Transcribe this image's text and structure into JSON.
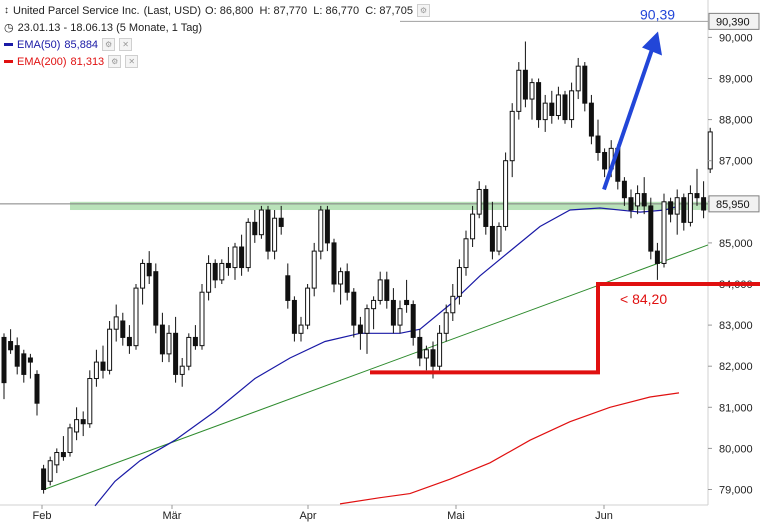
{
  "header": {
    "title": "United Parcel Service Inc.",
    "quote_type": "(Last, USD)",
    "ohlc": "O: 86,800  H: 87,770  L: 86,770  C: 87,705",
    "range": "23.01.13 - 18.06.13 (5 Monate, 1 Tag)"
  },
  "indicators": [
    {
      "label": "EMA(50)",
      "value": "85,884",
      "color": "#1a1aa6"
    },
    {
      "label": "EMA(200)",
      "value": "81,313",
      "color": "#e01010"
    }
  ],
  "chart_data": {
    "type": "candlestick",
    "x_labels": [
      "Feb",
      "Mär",
      "Apr",
      "Mai",
      "Jun"
    ],
    "y_labels": [
      "79,000",
      "80,000",
      "81,000",
      "82,000",
      "83,000",
      "84,000",
      "85,000",
      "86,000",
      "87,000",
      "88,000",
      "89,000",
      "90,000"
    ],
    "ylim": [
      78.8,
      90.5
    ],
    "axis_markers": [
      {
        "value": 90.39,
        "label": "90,390",
        "style": "box-gray"
      },
      {
        "value": 85.95,
        "label": "85,950",
        "style": "box-gray"
      },
      {
        "value": 84.0,
        "label": "84,000",
        "style": "red"
      }
    ],
    "annotations": {
      "target_label": "90,39",
      "target_value": 90.39,
      "support_label": "< 84,20",
      "support_zone": [
        85.8,
        86.0
      ],
      "colors": {
        "target": "#2246d8",
        "support": "#e01010",
        "zone": "#b9e2b9",
        "trend": "#2e8b2e"
      }
    },
    "candles": [
      {
        "o": 82.7,
        "h": 82.8,
        "l": 81.2,
        "c": 81.6
      },
      {
        "o": 82.6,
        "h": 82.9,
        "l": 82.3,
        "c": 82.4
      },
      {
        "o": 82.5,
        "h": 82.7,
        "l": 81.8,
        "c": 82.0
      },
      {
        "o": 82.3,
        "h": 82.4,
        "l": 81.6,
        "c": 81.8
      },
      {
        "o": 82.2,
        "h": 82.3,
        "l": 81.7,
        "c": 82.1
      },
      {
        "o": 81.8,
        "h": 81.9,
        "l": 80.8,
        "c": 81.1
      },
      {
        "o": 79.5,
        "h": 79.6,
        "l": 78.9,
        "c": 79.0
      },
      {
        "o": 79.2,
        "h": 79.8,
        "l": 79.1,
        "c": 79.7
      },
      {
        "o": 79.6,
        "h": 80.0,
        "l": 79.4,
        "c": 79.9
      },
      {
        "o": 79.9,
        "h": 80.3,
        "l": 79.7,
        "c": 79.8
      },
      {
        "o": 79.9,
        "h": 80.6,
        "l": 79.8,
        "c": 80.5
      },
      {
        "o": 80.4,
        "h": 81.0,
        "l": 80.2,
        "c": 80.7
      },
      {
        "o": 80.7,
        "h": 80.9,
        "l": 80.3,
        "c": 80.6
      },
      {
        "o": 80.6,
        "h": 81.9,
        "l": 80.5,
        "c": 81.7
      },
      {
        "o": 81.7,
        "h": 82.4,
        "l": 81.5,
        "c": 82.1
      },
      {
        "o": 82.1,
        "h": 82.5,
        "l": 81.7,
        "c": 81.9
      },
      {
        "o": 81.9,
        "h": 83.1,
        "l": 81.8,
        "c": 82.9
      },
      {
        "o": 82.9,
        "h": 83.5,
        "l": 82.6,
        "c": 83.2
      },
      {
        "o": 83.1,
        "h": 83.3,
        "l": 82.5,
        "c": 82.7
      },
      {
        "o": 82.7,
        "h": 83.0,
        "l": 82.3,
        "c": 82.5
      },
      {
        "o": 82.5,
        "h": 84.0,
        "l": 82.4,
        "c": 83.9
      },
      {
        "o": 83.9,
        "h": 84.6,
        "l": 83.5,
        "c": 84.5
      },
      {
        "o": 84.5,
        "h": 84.8,
        "l": 84.0,
        "c": 84.2
      },
      {
        "o": 84.3,
        "h": 84.5,
        "l": 82.8,
        "c": 83.0
      },
      {
        "o": 83.0,
        "h": 83.3,
        "l": 82.1,
        "c": 82.3
      },
      {
        "o": 82.3,
        "h": 83.0,
        "l": 82.1,
        "c": 82.8
      },
      {
        "o": 82.8,
        "h": 83.2,
        "l": 81.6,
        "c": 81.8
      },
      {
        "o": 81.8,
        "h": 82.2,
        "l": 81.5,
        "c": 82.0
      },
      {
        "o": 82.0,
        "h": 82.8,
        "l": 81.9,
        "c": 82.7
      },
      {
        "o": 82.7,
        "h": 83.0,
        "l": 82.4,
        "c": 82.5
      },
      {
        "o": 82.5,
        "h": 84.0,
        "l": 82.4,
        "c": 83.8
      },
      {
        "o": 83.8,
        "h": 84.7,
        "l": 83.6,
        "c": 84.5
      },
      {
        "o": 84.5,
        "h": 84.6,
        "l": 83.9,
        "c": 84.1
      },
      {
        "o": 84.1,
        "h": 84.6,
        "l": 84.0,
        "c": 84.5
      },
      {
        "o": 84.5,
        "h": 84.9,
        "l": 84.2,
        "c": 84.4
      },
      {
        "o": 84.4,
        "h": 85.0,
        "l": 84.1,
        "c": 84.9
      },
      {
        "o": 84.9,
        "h": 85.2,
        "l": 84.2,
        "c": 84.4
      },
      {
        "o": 84.4,
        "h": 85.6,
        "l": 84.3,
        "c": 85.5
      },
      {
        "o": 85.5,
        "h": 85.8,
        "l": 85.0,
        "c": 85.2
      },
      {
        "o": 85.2,
        "h": 85.9,
        "l": 85.1,
        "c": 85.8
      },
      {
        "o": 85.8,
        "h": 85.9,
        "l": 84.6,
        "c": 84.8
      },
      {
        "o": 84.8,
        "h": 85.8,
        "l": 84.6,
        "c": 85.6
      },
      {
        "o": 85.6,
        "h": 85.9,
        "l": 85.2,
        "c": 85.4
      },
      {
        "o": 84.2,
        "h": 84.5,
        "l": 83.4,
        "c": 83.6
      },
      {
        "o": 83.6,
        "h": 83.7,
        "l": 82.6,
        "c": 82.8
      },
      {
        "o": 82.8,
        "h": 83.2,
        "l": 82.6,
        "c": 83.0
      },
      {
        "o": 83.0,
        "h": 84.0,
        "l": 82.9,
        "c": 83.9
      },
      {
        "o": 83.9,
        "h": 85.0,
        "l": 83.7,
        "c": 84.8
      },
      {
        "o": 84.8,
        "h": 85.9,
        "l": 84.6,
        "c": 85.8
      },
      {
        "o": 85.8,
        "h": 85.9,
        "l": 84.8,
        "c": 85.0
      },
      {
        "o": 85.0,
        "h": 85.1,
        "l": 83.8,
        "c": 84.0
      },
      {
        "o": 84.0,
        "h": 84.4,
        "l": 83.5,
        "c": 84.3
      },
      {
        "o": 84.3,
        "h": 84.5,
        "l": 83.6,
        "c": 83.8
      },
      {
        "o": 83.8,
        "h": 83.9,
        "l": 82.7,
        "c": 83.0
      },
      {
        "o": 83.0,
        "h": 83.2,
        "l": 82.4,
        "c": 82.8
      },
      {
        "o": 82.8,
        "h": 83.5,
        "l": 82.3,
        "c": 83.4
      },
      {
        "o": 83.4,
        "h": 83.7,
        "l": 82.9,
        "c": 83.6
      },
      {
        "o": 83.6,
        "h": 84.3,
        "l": 83.5,
        "c": 84.1
      },
      {
        "o": 84.1,
        "h": 84.3,
        "l": 83.4,
        "c": 83.6
      },
      {
        "o": 83.6,
        "h": 83.9,
        "l": 82.8,
        "c": 83.0
      },
      {
        "o": 83.0,
        "h": 83.6,
        "l": 82.8,
        "c": 83.4
      },
      {
        "o": 83.6,
        "h": 84.1,
        "l": 83.3,
        "c": 83.5
      },
      {
        "o": 83.5,
        "h": 83.6,
        "l": 82.5,
        "c": 82.7
      },
      {
        "o": 82.7,
        "h": 82.9,
        "l": 82.0,
        "c": 82.2
      },
      {
        "o": 82.2,
        "h": 82.5,
        "l": 81.9,
        "c": 82.4
      },
      {
        "o": 82.4,
        "h": 82.6,
        "l": 81.7,
        "c": 82.0
      },
      {
        "o": 82.0,
        "h": 83.0,
        "l": 81.9,
        "c": 82.8
      },
      {
        "o": 82.8,
        "h": 83.5,
        "l": 82.6,
        "c": 83.3
      },
      {
        "o": 83.3,
        "h": 84.0,
        "l": 83.1,
        "c": 83.7
      },
      {
        "o": 83.7,
        "h": 84.6,
        "l": 83.5,
        "c": 84.4
      },
      {
        "o": 84.4,
        "h": 85.3,
        "l": 84.2,
        "c": 85.1
      },
      {
        "o": 85.1,
        "h": 85.9,
        "l": 84.9,
        "c": 85.7
      },
      {
        "o": 85.7,
        "h": 86.5,
        "l": 85.6,
        "c": 86.3
      },
      {
        "o": 86.3,
        "h": 86.4,
        "l": 85.2,
        "c": 85.4
      },
      {
        "o": 85.4,
        "h": 86.0,
        "l": 84.6,
        "c": 84.8
      },
      {
        "o": 84.8,
        "h": 85.5,
        "l": 84.7,
        "c": 85.4
      },
      {
        "o": 85.4,
        "h": 87.2,
        "l": 85.3,
        "c": 87.0
      },
      {
        "o": 87.0,
        "h": 88.4,
        "l": 86.6,
        "c": 88.2
      },
      {
        "o": 88.2,
        "h": 89.4,
        "l": 88.0,
        "c": 89.2
      },
      {
        "o": 89.2,
        "h": 89.9,
        "l": 88.3,
        "c": 88.5
      },
      {
        "o": 88.5,
        "h": 89.0,
        "l": 88.0,
        "c": 88.9
      },
      {
        "o": 88.9,
        "h": 89.0,
        "l": 87.8,
        "c": 88.0
      },
      {
        "o": 88.0,
        "h": 88.6,
        "l": 87.7,
        "c": 88.4
      },
      {
        "o": 88.4,
        "h": 88.7,
        "l": 87.9,
        "c": 88.1
      },
      {
        "o": 88.1,
        "h": 88.8,
        "l": 88.0,
        "c": 88.6
      },
      {
        "o": 88.6,
        "h": 88.7,
        "l": 87.9,
        "c": 88.0
      },
      {
        "o": 88.0,
        "h": 88.9,
        "l": 87.8,
        "c": 88.7
      },
      {
        "o": 88.7,
        "h": 89.5,
        "l": 88.5,
        "c": 89.3
      },
      {
        "o": 89.3,
        "h": 89.4,
        "l": 88.2,
        "c": 88.4
      },
      {
        "o": 88.4,
        "h": 88.6,
        "l": 87.4,
        "c": 87.6
      },
      {
        "o": 87.6,
        "h": 88.0,
        "l": 87.0,
        "c": 87.2
      },
      {
        "o": 87.2,
        "h": 87.3,
        "l": 86.6,
        "c": 86.8
      },
      {
        "o": 86.8,
        "h": 87.5,
        "l": 86.6,
        "c": 87.3
      },
      {
        "o": 87.3,
        "h": 87.4,
        "l": 86.3,
        "c": 86.5
      },
      {
        "o": 86.5,
        "h": 86.6,
        "l": 85.9,
        "c": 86.1
      },
      {
        "o": 86.1,
        "h": 86.3,
        "l": 85.6,
        "c": 85.8
      },
      {
        "o": 85.9,
        "h": 86.4,
        "l": 85.7,
        "c": 86.2
      },
      {
        "o": 86.2,
        "h": 86.6,
        "l": 85.7,
        "c": 85.9
      },
      {
        "o": 85.9,
        "h": 86.1,
        "l": 84.6,
        "c": 84.8
      },
      {
        "o": 84.8,
        "h": 85.0,
        "l": 84.1,
        "c": 84.5
      },
      {
        "o": 84.5,
        "h": 86.2,
        "l": 84.4,
        "c": 86.0
      },
      {
        "o": 86.0,
        "h": 86.1,
        "l": 85.5,
        "c": 85.7
      },
      {
        "o": 85.7,
        "h": 86.3,
        "l": 85.2,
        "c": 86.1
      },
      {
        "o": 86.1,
        "h": 86.2,
        "l": 85.3,
        "c": 85.5
      },
      {
        "o": 85.5,
        "h": 86.4,
        "l": 85.4,
        "c": 86.2
      },
      {
        "o": 86.2,
        "h": 86.8,
        "l": 85.9,
        "c": 86.1
      },
      {
        "o": 86.1,
        "h": 86.5,
        "l": 85.6,
        "c": 85.8
      },
      {
        "o": 86.8,
        "h": 87.8,
        "l": 86.7,
        "c": 87.7
      }
    ]
  }
}
